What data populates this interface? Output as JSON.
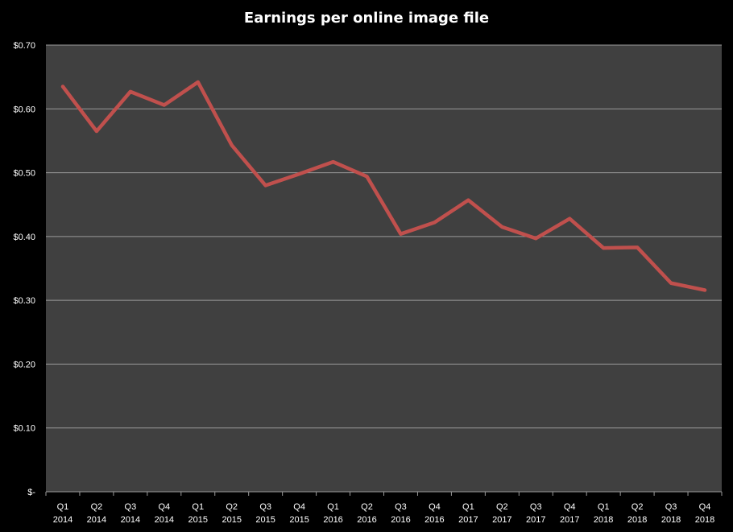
{
  "chart_data": {
    "type": "line",
    "title": "Earnings per online image file",
    "xlabel": "",
    "ylabel": "",
    "ylim": [
      0,
      0.7
    ],
    "yticks": [
      0,
      0.1,
      0.2,
      0.3,
      0.4,
      0.5,
      0.6,
      0.7
    ],
    "ytick_labels": [
      "$-",
      "$0.10",
      "$0.20",
      "$0.30",
      "$0.40",
      "$0.50",
      "$0.60",
      "$0.70"
    ],
    "categories": [
      [
        "Q1",
        "2014"
      ],
      [
        "Q2",
        "2014"
      ],
      [
        "Q3",
        "2014"
      ],
      [
        "Q4",
        "2014"
      ],
      [
        "Q1",
        "2015"
      ],
      [
        "Q2",
        "2015"
      ],
      [
        "Q3",
        "2015"
      ],
      [
        "Q4",
        "2015"
      ],
      [
        "Q1",
        "2016"
      ],
      [
        "Q2",
        "2016"
      ],
      [
        "Q3",
        "2016"
      ],
      [
        "Q4",
        "2016"
      ],
      [
        "Q1",
        "2017"
      ],
      [
        "Q2",
        "2017"
      ],
      [
        "Q3",
        "2017"
      ],
      [
        "Q4",
        "2017"
      ],
      [
        "Q1",
        "2018"
      ],
      [
        "Q2",
        "2018"
      ],
      [
        "Q3",
        "2018"
      ],
      [
        "Q4",
        "2018"
      ]
    ],
    "series": [
      {
        "values": [
          0.635,
          0.565,
          0.627,
          0.606,
          0.642,
          0.543,
          0.48,
          0.498,
          0.517,
          0.494,
          0.404,
          0.422,
          0.457,
          0.415,
          0.397,
          0.428,
          0.382,
          0.383,
          0.327,
          0.316
        ]
      }
    ],
    "grid": true,
    "legend": "none",
    "colors": {
      "background": "#000000",
      "plot_area": "#404040",
      "gridline": "#9a9a9a",
      "line": "#c0504d",
      "text": "#ffffff"
    }
  }
}
